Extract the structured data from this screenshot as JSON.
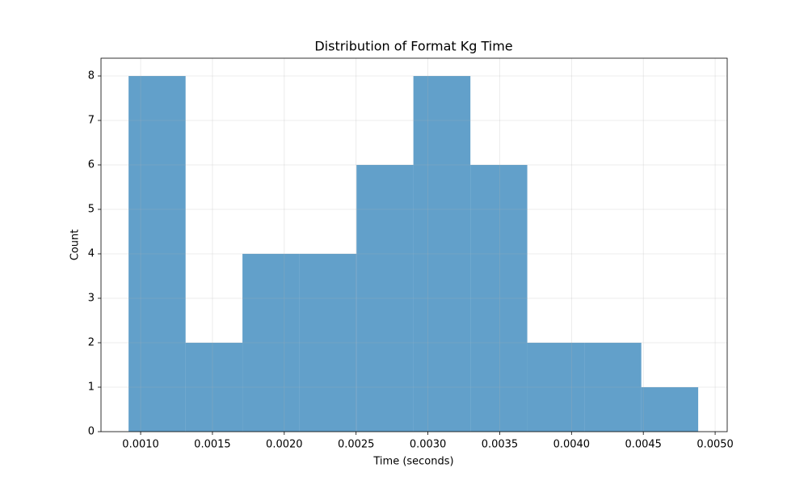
{
  "chart_data": {
    "type": "histogram",
    "title": "Distribution of Format Kg Time",
    "xlabel": "Time (seconds)",
    "ylabel": "Count",
    "bins": [
      0.000916,
      0.001313,
      0.001709,
      0.002106,
      0.002503,
      0.002899,
      0.003296,
      0.003692,
      0.004089,
      0.004486,
      0.004882
    ],
    "values": [
      8,
      2,
      4,
      4,
      6,
      8,
      6,
      2,
      2,
      1
    ],
    "color": "#1f77b4",
    "opacity": 0.7,
    "xlim": [
      0.000724,
      0.005084
    ],
    "xticks": [
      {
        "value": 0.001,
        "label": "0.0010"
      },
      {
        "value": 0.0015,
        "label": "0.0015"
      },
      {
        "value": 0.002,
        "label": "0.0020"
      },
      {
        "value": 0.0025,
        "label": "0.0025"
      },
      {
        "value": 0.003,
        "label": "0.0030"
      },
      {
        "value": 0.0035,
        "label": "0.0035"
      },
      {
        "value": 0.004,
        "label": "0.0040"
      },
      {
        "value": 0.0045,
        "label": "0.0045"
      },
      {
        "value": 0.005,
        "label": "0.0050"
      }
    ],
    "ylim": [
      0,
      8.4
    ],
    "yticks": [
      0,
      1,
      2,
      3,
      4,
      5,
      6,
      7,
      8
    ],
    "grid": true
  }
}
